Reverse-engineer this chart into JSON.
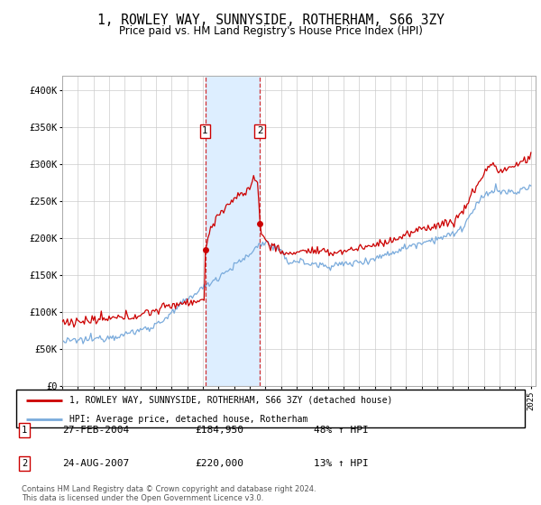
{
  "title": "1, ROWLEY WAY, SUNNYSIDE, ROTHERHAM, S66 3ZY",
  "subtitle": "Price paid vs. HM Land Registry's House Price Index (HPI)",
  "legend_line1": "1, ROWLEY WAY, SUNNYSIDE, ROTHERHAM, S66 3ZY (detached house)",
  "legend_line2": "HPI: Average price, detached house, Rotherham",
  "sale1_date": "27-FEB-2004",
  "sale1_price": 184950,
  "sale1_label": "1",
  "sale1_year": 2004.15,
  "sale2_date": "24-AUG-2007",
  "sale2_price": 220000,
  "sale2_label": "2",
  "sale2_year": 2007.65,
  "table_rows": [
    {
      "num": "1",
      "date": "27-FEB-2004",
      "price": "£184,950",
      "change": "48% ↑ HPI"
    },
    {
      "num": "2",
      "date": "24-AUG-2007",
      "price": "£220,000",
      "change": "13% ↑ HPI"
    }
  ],
  "footer": "Contains HM Land Registry data © Crown copyright and database right 2024.\nThis data is licensed under the Open Government Licence v3.0.",
  "ylim": [
    0,
    420000
  ],
  "yticks": [
    0,
    50000,
    100000,
    150000,
    200000,
    250000,
    300000,
    350000,
    400000
  ],
  "ytick_labels": [
    "£0",
    "£50K",
    "£100K",
    "£150K",
    "£200K",
    "£250K",
    "£300K",
    "£350K",
    "£400K"
  ],
  "hpi_color": "#7aabdc",
  "price_color": "#cc0000",
  "shade_color": "#ddeeff",
  "vline_color": "#cc0000",
  "background_color": "#ffffff",
  "grid_color": "#cccccc",
  "xlim_start": 1995,
  "xlim_end": 2025.3
}
